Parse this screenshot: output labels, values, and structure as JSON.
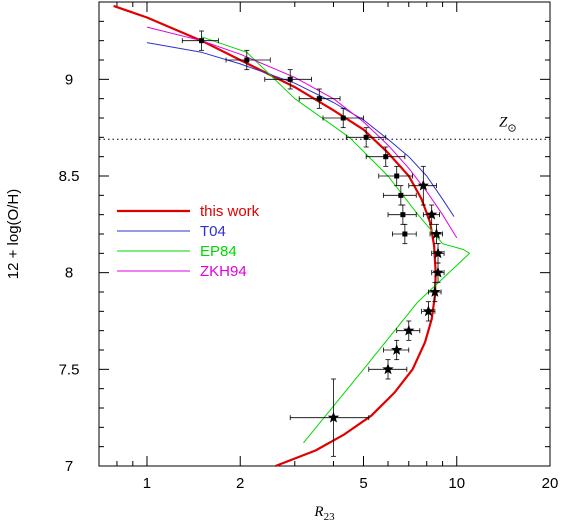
{
  "chart_data": {
    "type": "scatter",
    "x_scale": "log",
    "xlim": [
      0.7,
      20
    ],
    "ylim": [
      7.0,
      9.4
    ],
    "x_ticks": [
      1,
      2,
      5,
      10,
      20
    ],
    "x_tick_labels": [
      "1",
      "2",
      "5",
      "10",
      "20"
    ],
    "y_ticks": [
      7.0,
      7.5,
      8.0,
      8.5,
      9.0
    ],
    "y_tick_labels": [
      "7",
      "7.5",
      "8",
      "8.5",
      "9"
    ],
    "xlabel": "R",
    "xlabel_sub": "23",
    "ylabel": "12 + log(O/H)",
    "solar_line": {
      "y": 8.69,
      "label": "Z",
      "label_symbol": "⊙"
    },
    "legend": {
      "placement": "middle-left"
    },
    "series": [
      {
        "name": "this work",
        "color": "#e00000",
        "kind": "line",
        "x": [
          0.78,
          1.0,
          1.5,
          2.0,
          3.0,
          4.0,
          5.0,
          6.0,
          7.0,
          7.7,
          8.2,
          8.45,
          8.55,
          8.5,
          8.3,
          7.9,
          7.2,
          6.3,
          5.3,
          4.3,
          3.5,
          2.6
        ],
        "y": [
          9.38,
          9.32,
          9.2,
          9.1,
          8.96,
          8.84,
          8.74,
          8.62,
          8.5,
          8.38,
          8.26,
          8.14,
          8.0,
          7.88,
          7.76,
          7.64,
          7.5,
          7.38,
          7.26,
          7.16,
          7.08,
          7.0
        ]
      },
      {
        "name": "T04",
        "color": "#3030d0",
        "kind": "line",
        "x": [
          1.0,
          1.5,
          2.0,
          3.0,
          4.0,
          5.0,
          6.0,
          7.0,
          8.0,
          9.0,
          9.8
        ],
        "y": [
          9.19,
          9.14,
          9.08,
          8.98,
          8.88,
          8.79,
          8.69,
          8.6,
          8.5,
          8.38,
          8.29
        ]
      },
      {
        "name": "EP84",
        "color": "#00d800",
        "kind": "line",
        "x": [
          1.5,
          2.1,
          3.0,
          4.5,
          6.0,
          7.5,
          9.0,
          10.5,
          11.0,
          7.5,
          5.0,
          3.2
        ],
        "y": [
          9.22,
          9.14,
          8.9,
          8.7,
          8.5,
          8.3,
          8.15,
          8.12,
          8.1,
          7.85,
          7.5,
          7.12
        ]
      },
      {
        "name": "ZKH94",
        "color": "#e000e0",
        "kind": "line",
        "x": [
          1.0,
          1.5,
          2.0,
          3.0,
          4.0,
          5.0,
          6.0,
          7.0,
          8.0,
          9.0,
          10.0
        ],
        "y": [
          9.27,
          9.2,
          9.13,
          9.01,
          8.9,
          8.78,
          8.66,
          8.54,
          8.42,
          8.3,
          8.18
        ]
      },
      {
        "name": "",
        "color": "#000000",
        "kind": "points",
        "marker": "square",
        "points": [
          {
            "x": 1.5,
            "y": 9.2,
            "xlo": 1.3,
            "xhi": 1.7,
            "ylo": 9.15,
            "yhi": 9.25
          },
          {
            "x": 2.1,
            "y": 9.1,
            "xlo": 1.8,
            "xhi": 2.5,
            "ylo": 9.05,
            "yhi": 9.15
          },
          {
            "x": 2.9,
            "y": 9.0,
            "xlo": 2.4,
            "xhi": 3.4,
            "ylo": 8.95,
            "yhi": 9.05
          },
          {
            "x": 3.6,
            "y": 8.9,
            "xlo": 3.1,
            "xhi": 4.2,
            "ylo": 8.85,
            "yhi": 8.95
          },
          {
            "x": 4.3,
            "y": 8.8,
            "xlo": 3.7,
            "xhi": 5.0,
            "ylo": 8.75,
            "yhi": 8.85
          },
          {
            "x": 5.1,
            "y": 8.7,
            "xlo": 4.4,
            "xhi": 5.9,
            "ylo": 8.65,
            "yhi": 8.75
          },
          {
            "x": 5.9,
            "y": 8.6,
            "xlo": 5.1,
            "xhi": 6.8,
            "ylo": 8.55,
            "yhi": 8.65
          },
          {
            "x": 6.4,
            "y": 8.5,
            "xlo": 5.6,
            "xhi": 7.2,
            "ylo": 8.45,
            "yhi": 8.55
          },
          {
            "x": 6.6,
            "y": 8.4,
            "xlo": 5.8,
            "xhi": 7.4,
            "ylo": 8.35,
            "yhi": 8.45
          },
          {
            "x": 6.7,
            "y": 8.3,
            "xlo": 6.0,
            "xhi": 7.4,
            "ylo": 8.25,
            "yhi": 8.35
          },
          {
            "x": 6.8,
            "y": 8.2,
            "xlo": 6.2,
            "xhi": 7.4,
            "ylo": 8.15,
            "yhi": 8.25
          }
        ]
      },
      {
        "name": "",
        "color": "#000000",
        "kind": "points",
        "marker": "star",
        "points": [
          {
            "x": 7.8,
            "y": 8.45,
            "xlo": 7.0,
            "xhi": 8.6,
            "ylo": 8.35,
            "yhi": 8.55
          },
          {
            "x": 8.3,
            "y": 8.3,
            "xlo": 7.8,
            "xhi": 8.8,
            "ylo": 8.25,
            "yhi": 8.35
          },
          {
            "x": 8.6,
            "y": 8.2,
            "xlo": 8.2,
            "xhi": 9.0,
            "ylo": 8.15,
            "yhi": 8.25
          },
          {
            "x": 8.7,
            "y": 8.1,
            "xlo": 8.3,
            "xhi": 9.1,
            "ylo": 8.05,
            "yhi": 8.15
          },
          {
            "x": 8.7,
            "y": 8.0,
            "xlo": 8.3,
            "xhi": 9.1,
            "ylo": 7.95,
            "yhi": 8.05
          },
          {
            "x": 8.5,
            "y": 7.9,
            "xlo": 8.1,
            "xhi": 8.9,
            "ylo": 7.85,
            "yhi": 7.95
          },
          {
            "x": 8.1,
            "y": 7.8,
            "xlo": 7.7,
            "xhi": 8.5,
            "ylo": 7.75,
            "yhi": 7.85
          },
          {
            "x": 7.0,
            "y": 7.7,
            "xlo": 6.4,
            "xhi": 7.6,
            "ylo": 7.65,
            "yhi": 7.75
          },
          {
            "x": 6.4,
            "y": 7.6,
            "xlo": 5.8,
            "xhi": 7.0,
            "ylo": 7.55,
            "yhi": 7.65
          },
          {
            "x": 6.0,
            "y": 7.5,
            "xlo": 5.2,
            "xhi": 6.9,
            "ylo": 7.45,
            "yhi": 7.55
          },
          {
            "x": 4.0,
            "y": 7.25,
            "xlo": 2.9,
            "xhi": 5.2,
            "ylo": 7.05,
            "yhi": 7.45
          }
        ]
      }
    ]
  }
}
